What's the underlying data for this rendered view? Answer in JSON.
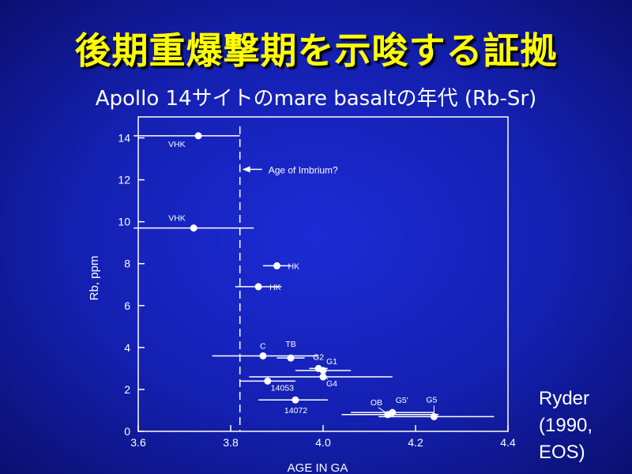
{
  "slide": {
    "title": "後期重爆撃期を示唆する証拠",
    "subtitle": "Apollo 14サイトのmare basaltの年代 (Rb-Sr)",
    "credit_lines": [
      "Ryder",
      "(1990,",
      "EOS)"
    ]
  },
  "colors": {
    "background": "#1420b0",
    "title": "#ffff00",
    "text": "#ffffff",
    "plot": "#ffffff"
  },
  "chart_data": {
    "type": "scatter",
    "title": "",
    "xlabel": "AGE IN GA",
    "ylabel": "Rb, ppm",
    "xlim": [
      3.6,
      4.4
    ],
    "ylim": [
      0,
      15
    ],
    "xticks": [
      {
        "value": 3.6,
        "label": "3.6"
      },
      {
        "value": 3.8,
        "label": "3.8"
      },
      {
        "value": 4.0,
        "label": "4.0"
      },
      {
        "value": 4.2,
        "label": "4.2"
      },
      {
        "value": 4.4,
        "label": "4.4"
      }
    ],
    "yticks": [
      {
        "value": 0,
        "label": "0"
      },
      {
        "value": 2,
        "label": "2"
      },
      {
        "value": 4,
        "label": "4"
      },
      {
        "value": 6,
        "label": "6"
      },
      {
        "value": 8,
        "label": "8"
      },
      {
        "value": 10,
        "label": "10"
      },
      {
        "value": 12,
        "label": "12"
      },
      {
        "value": 14,
        "label": "14"
      }
    ],
    "reference_line": {
      "x": 3.82,
      "label": "Age of Imbrium?",
      "label_y": 12.5
    },
    "points": [
      {
        "label": "VHK",
        "x": 3.73,
        "y": 14.1,
        "xerr_low": 3.59,
        "xerr_high": 3.82
      },
      {
        "label": "VHK",
        "x": 3.72,
        "y": 9.7,
        "xerr_low": 3.59,
        "xerr_high": 3.85
      },
      {
        "label": "HK",
        "x": 3.9,
        "y": 7.9,
        "xerr_low": 3.87,
        "xerr_high": 3.93
      },
      {
        "label": "HK",
        "x": 3.86,
        "y": 6.9,
        "xerr_low": 3.81,
        "xerr_high": 3.91
      },
      {
        "label": "C",
        "x": 3.87,
        "y": 3.6,
        "xerr_low": 3.76,
        "xerr_high": 3.99
      },
      {
        "label": "TB",
        "x": 3.93,
        "y": 3.5,
        "xerr_low": 3.9,
        "xerr_high": 3.96
      },
      {
        "label": "G2",
        "x": 3.99,
        "y": 3.0,
        "xerr_low": 3.97,
        "xerr_high": 4.01
      },
      {
        "label": "G1",
        "x": 4.0,
        "y": 2.9,
        "xerr_low": 3.94,
        "xerr_high": 4.06
      },
      {
        "label": "G4",
        "x": 4.0,
        "y": 2.6,
        "xerr_low": 3.84,
        "xerr_high": 4.15
      },
      {
        "label": "14053",
        "x": 3.88,
        "y": 2.4,
        "xerr_low": 3.82,
        "xerr_high": 3.94
      },
      {
        "label": "14072",
        "x": 3.94,
        "y": 1.5,
        "xerr_low": 3.86,
        "xerr_high": 4.01
      },
      {
        "label": "OB",
        "x": 4.14,
        "y": 0.8,
        "xerr_low": 4.04,
        "xerr_high": 4.25
      },
      {
        "label": "G5'",
        "x": 4.15,
        "y": 0.9,
        "xerr_low": 4.06,
        "xerr_high": 4.24
      },
      {
        "label": "G5",
        "x": 4.24,
        "y": 0.7,
        "xerr_low": 4.12,
        "xerr_high": 4.37
      }
    ]
  }
}
